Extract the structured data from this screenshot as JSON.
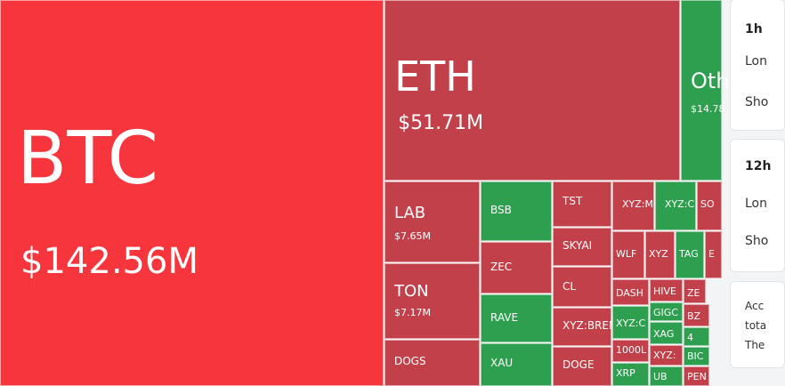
{
  "tiles": [
    {
      "label": "BTC",
      "value": "$142.56M"
    },
    {
      "label": "ETH",
      "value": "$51.71M"
    },
    {
      "label": "Oth",
      "value": "$14.78"
    },
    {
      "label": "LAB",
      "value": "$7.65M"
    },
    {
      "label": "TON",
      "value": "$7.17M"
    },
    {
      "label": "DOGS"
    },
    {
      "label": "BSB"
    },
    {
      "label": "ZEC"
    },
    {
      "label": "RAVE"
    },
    {
      "label": "XAU"
    },
    {
      "label": "TST"
    },
    {
      "label": "SKYAI"
    },
    {
      "label": "CL"
    },
    {
      "label": "XYZ:BREN"
    },
    {
      "label": "DOGE"
    },
    {
      "label": "XYZ:MI"
    },
    {
      "label": "XYZ:C"
    },
    {
      "label": "SO"
    },
    {
      "label": "WLF"
    },
    {
      "label": "XYZ"
    },
    {
      "label": "TAG"
    },
    {
      "label": "E"
    },
    {
      "label": "DASH"
    },
    {
      "label": "HIVE"
    },
    {
      "label": "ZE"
    },
    {
      "label": "XYZ:C"
    },
    {
      "label": "GIGC"
    },
    {
      "label": "XAG"
    },
    {
      "label": "BZ"
    },
    {
      "label": "4"
    },
    {
      "label": "1000L"
    },
    {
      "label": "XYZ:"
    },
    {
      "label": "BIC"
    },
    {
      "label": "XRP"
    },
    {
      "label": "UB"
    },
    {
      "label": "PEN"
    }
  ],
  "panel": {
    "cards": [
      {
        "title": "1h",
        "rows": [
          "Lon",
          "Sho"
        ]
      },
      {
        "title": "12h",
        "rows": [
          "Lon",
          "Sho"
        ]
      },
      {
        "rows": [
          "Acc",
          "tota",
          "The"
        ]
      }
    ]
  }
}
